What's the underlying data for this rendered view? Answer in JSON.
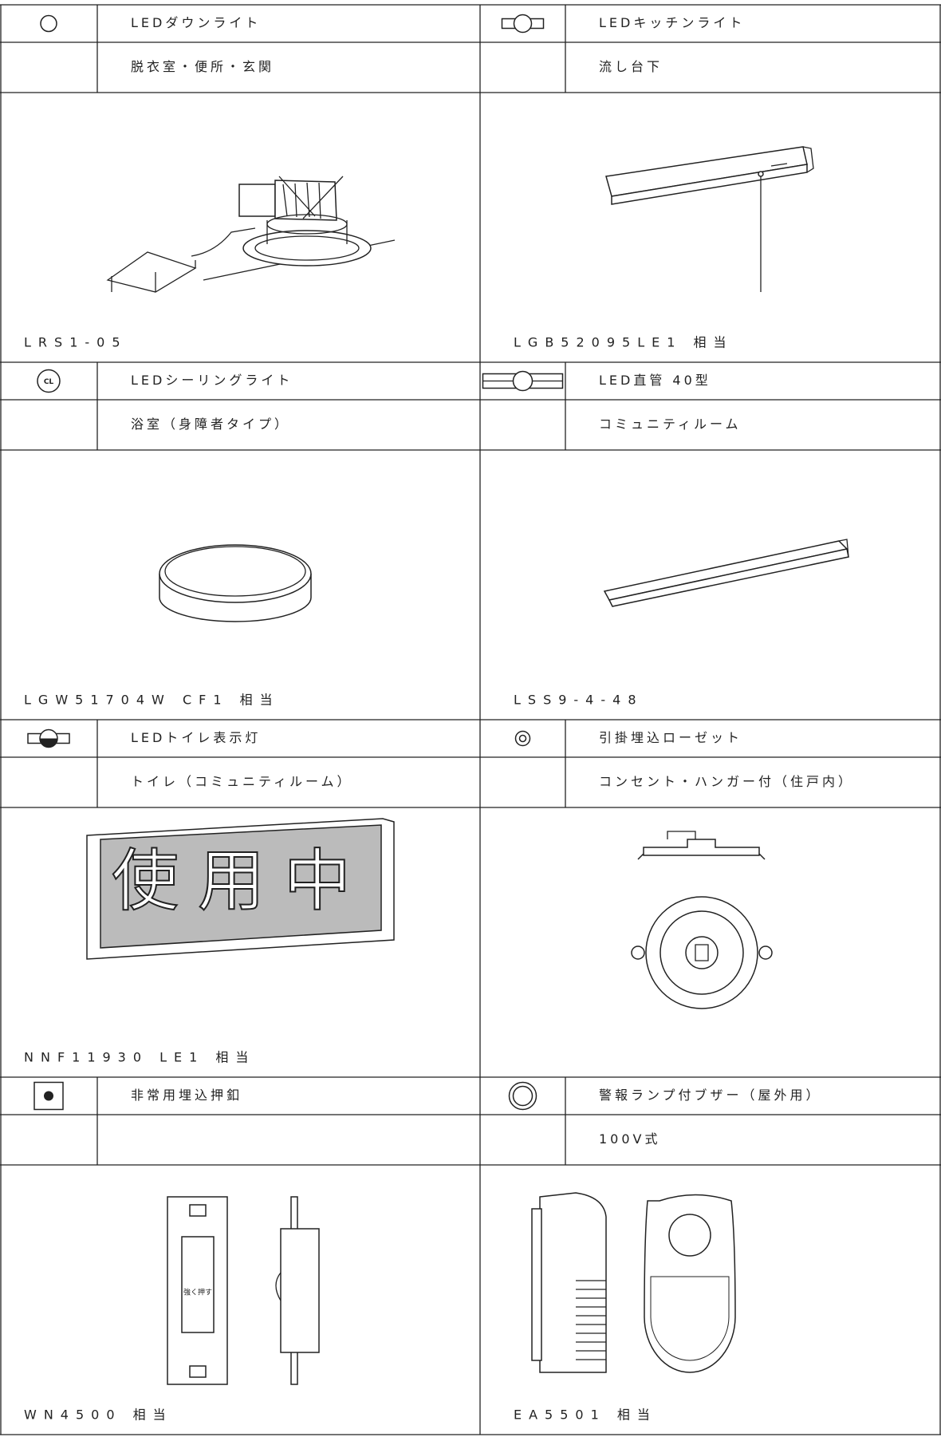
{
  "items": [
    {
      "name": "LEDダウンライト",
      "location": "脱衣室・便所・玄関",
      "model": "LRS1-05"
    },
    {
      "name": "LEDキッチンライト",
      "location": "流し台下",
      "model": "LGB52095LE1 相当"
    },
    {
      "symbol_text": "CL",
      "name": "LEDシーリングライト",
      "location": "浴室（身障者タイプ）",
      "model": "LGW51704W CF1 相当"
    },
    {
      "name": "LED直管 40型",
      "location": "コミュニティルーム",
      "model": "LSS9-4-48"
    },
    {
      "name": "LEDトイレ表示灯",
      "location": "トイレ（コミュニティルーム）",
      "model": "NNF11930 LE1 相当",
      "sign_text": "使用中"
    },
    {
      "name": "引掛埋込ローゼット",
      "location": "コンセント・ハンガー付（住戸内）"
    },
    {
      "name": "非常用埋込押釦",
      "model": "WN4500 相当",
      "label_text": "強く押す"
    },
    {
      "name": "警報ランプ付ブザー（屋外用）",
      "location": "100V式",
      "model": "EA5501 相当"
    }
  ]
}
